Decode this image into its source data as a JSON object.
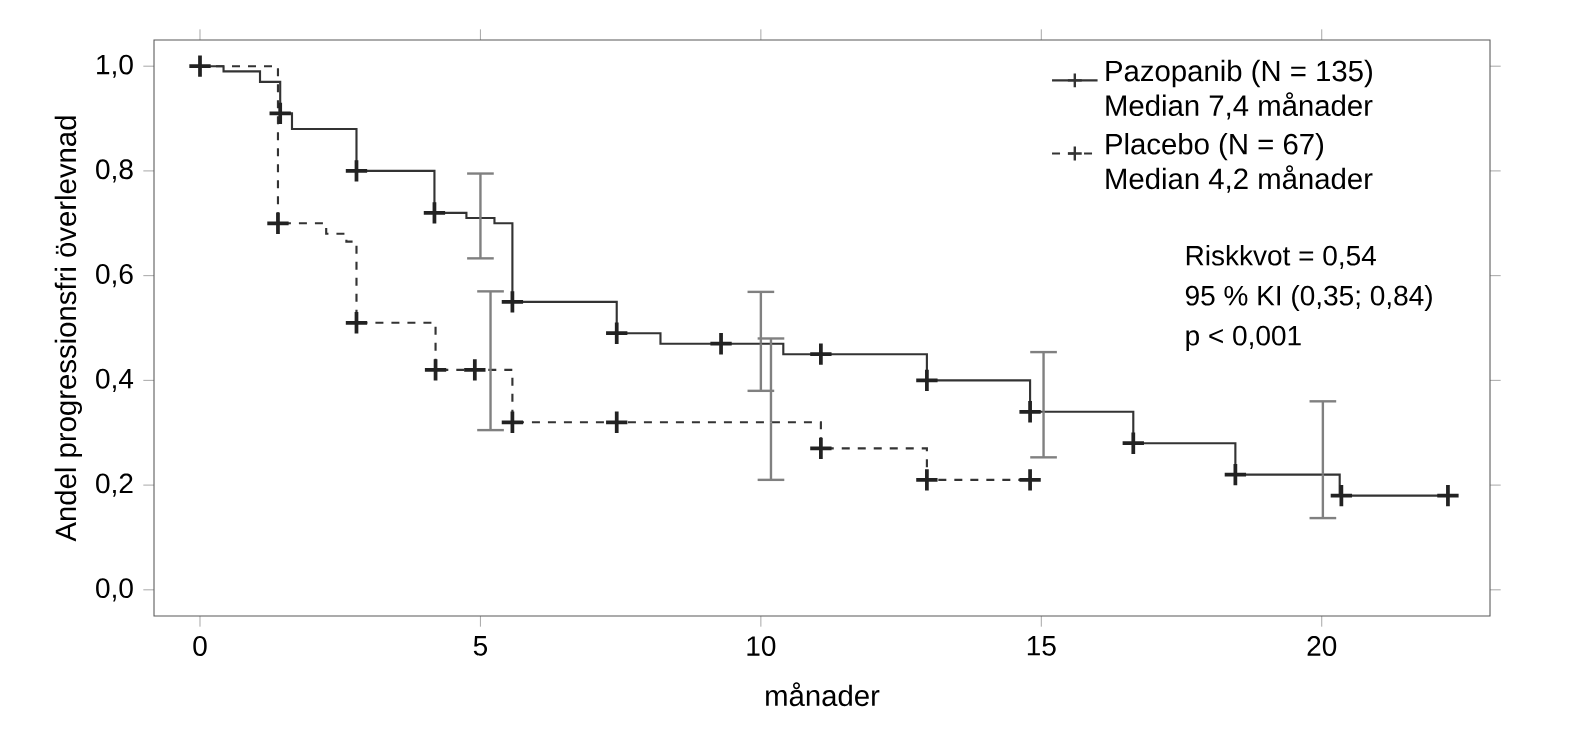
{
  "chart_data": {
    "type": "step",
    "xlabel": "månader",
    "ylabel": "Andel progressionsfri överlevnad",
    "xlim": [
      -0.82,
      23.0
    ],
    "ylim": [
      -0.05,
      1.05
    ],
    "xticks": [
      0,
      5,
      10,
      15,
      20
    ],
    "yticks": [
      {
        "value": 0,
        "label": "0,0"
      },
      {
        "value": 0.2,
        "label": "0,2"
      },
      {
        "value": 0.4,
        "label": "0,4"
      },
      {
        "value": 0.6,
        "label": "0,6"
      },
      {
        "value": 0.8,
        "label": "0,8"
      },
      {
        "value": 1,
        "label": "1,0"
      }
    ],
    "grid": false,
    "legend": "top right",
    "annotations": [
      "Riskkvot = 0,54",
      "95 % KI (0,35; 0,84)",
      "p < 0,001"
    ],
    "series": [
      {
        "type": "step",
        "name": "Pazopanib (N = 135) Median 7,4 månader",
        "color": "#333333",
        "line_style": "solid",
        "x": [
          0,
          0.42,
          1.07,
          1.43,
          1.64,
          2.79,
          4.18,
          4.75,
          5.0,
          5.25,
          5.57,
          7.43,
          8.21,
          10.0,
          10.4,
          12.96,
          14.8,
          15.04,
          16.64,
          18.46,
          20.02,
          20.32,
          22.25
        ],
        "values": [
          1.0,
          0.99,
          0.97,
          0.91,
          0.88,
          0.8,
          0.72,
          0.71,
          0.71,
          0.7,
          0.55,
          0.49,
          0.47,
          0.47,
          0.45,
          0.4,
          0.34,
          0.34,
          0.28,
          0.22,
          0.22,
          0.18,
          0.18
        ],
        "errors": [
          null,
          null,
          null,
          null,
          null,
          null,
          null,
          null,
          [
            0.633,
            0.795
          ],
          null,
          null,
          null,
          null,
          [
            0.38,
            0.569
          ],
          null,
          null,
          null,
          [
            0.253,
            0.454
          ],
          null,
          null,
          [
            0.137,
            0.36
          ],
          null,
          null
        ]
      },
      {
        "type": "step",
        "name": "Placebo (N = 67) Median 4,2 månader",
        "color": "#333333",
        "line_style": "dashed",
        "x": [
          0,
          1.39,
          2.25,
          2.61,
          2.79,
          4.2,
          5.18,
          5.57,
          10.18,
          11.07,
          12.96,
          14.8
        ],
        "values": [
          1.0,
          0.7,
          0.68,
          0.665,
          0.51,
          0.42,
          0.42,
          0.32,
          0.32,
          0.27,
          0.21,
          0.21
        ],
        "errors": [
          null,
          null,
          null,
          null,
          null,
          null,
          [
            0.305,
            0.57
          ],
          null,
          [
            0.21,
            0.48
          ],
          null,
          null,
          null
        ]
      },
      {
        "type": "scatter",
        "color": "#222222",
        "marker": "cross",
        "x": [
          0,
          1.43,
          2.79,
          4.18,
          5.57,
          7.43,
          9.29,
          11.07,
          12.96,
          14.8,
          16.64,
          18.46,
          20.35,
          22.25
        ],
        "values": [
          1.0,
          0.91,
          0.8,
          0.72,
          0.55,
          0.49,
          0.47,
          0.45,
          0.4,
          0.34,
          0.28,
          0.22,
          0.18,
          0.18
        ]
      },
      {
        "type": "scatter",
        "color": "#222222",
        "marker": "cross",
        "x": [
          1.39,
          2.79,
          4.2,
          4.9,
          5.57,
          7.43,
          11.07,
          12.96,
          14.8
        ],
        "values": [
          0.7,
          0.51,
          0.42,
          0.42,
          0.32,
          0.32,
          0.27,
          0.21,
          0.21
        ]
      }
    ]
  }
}
